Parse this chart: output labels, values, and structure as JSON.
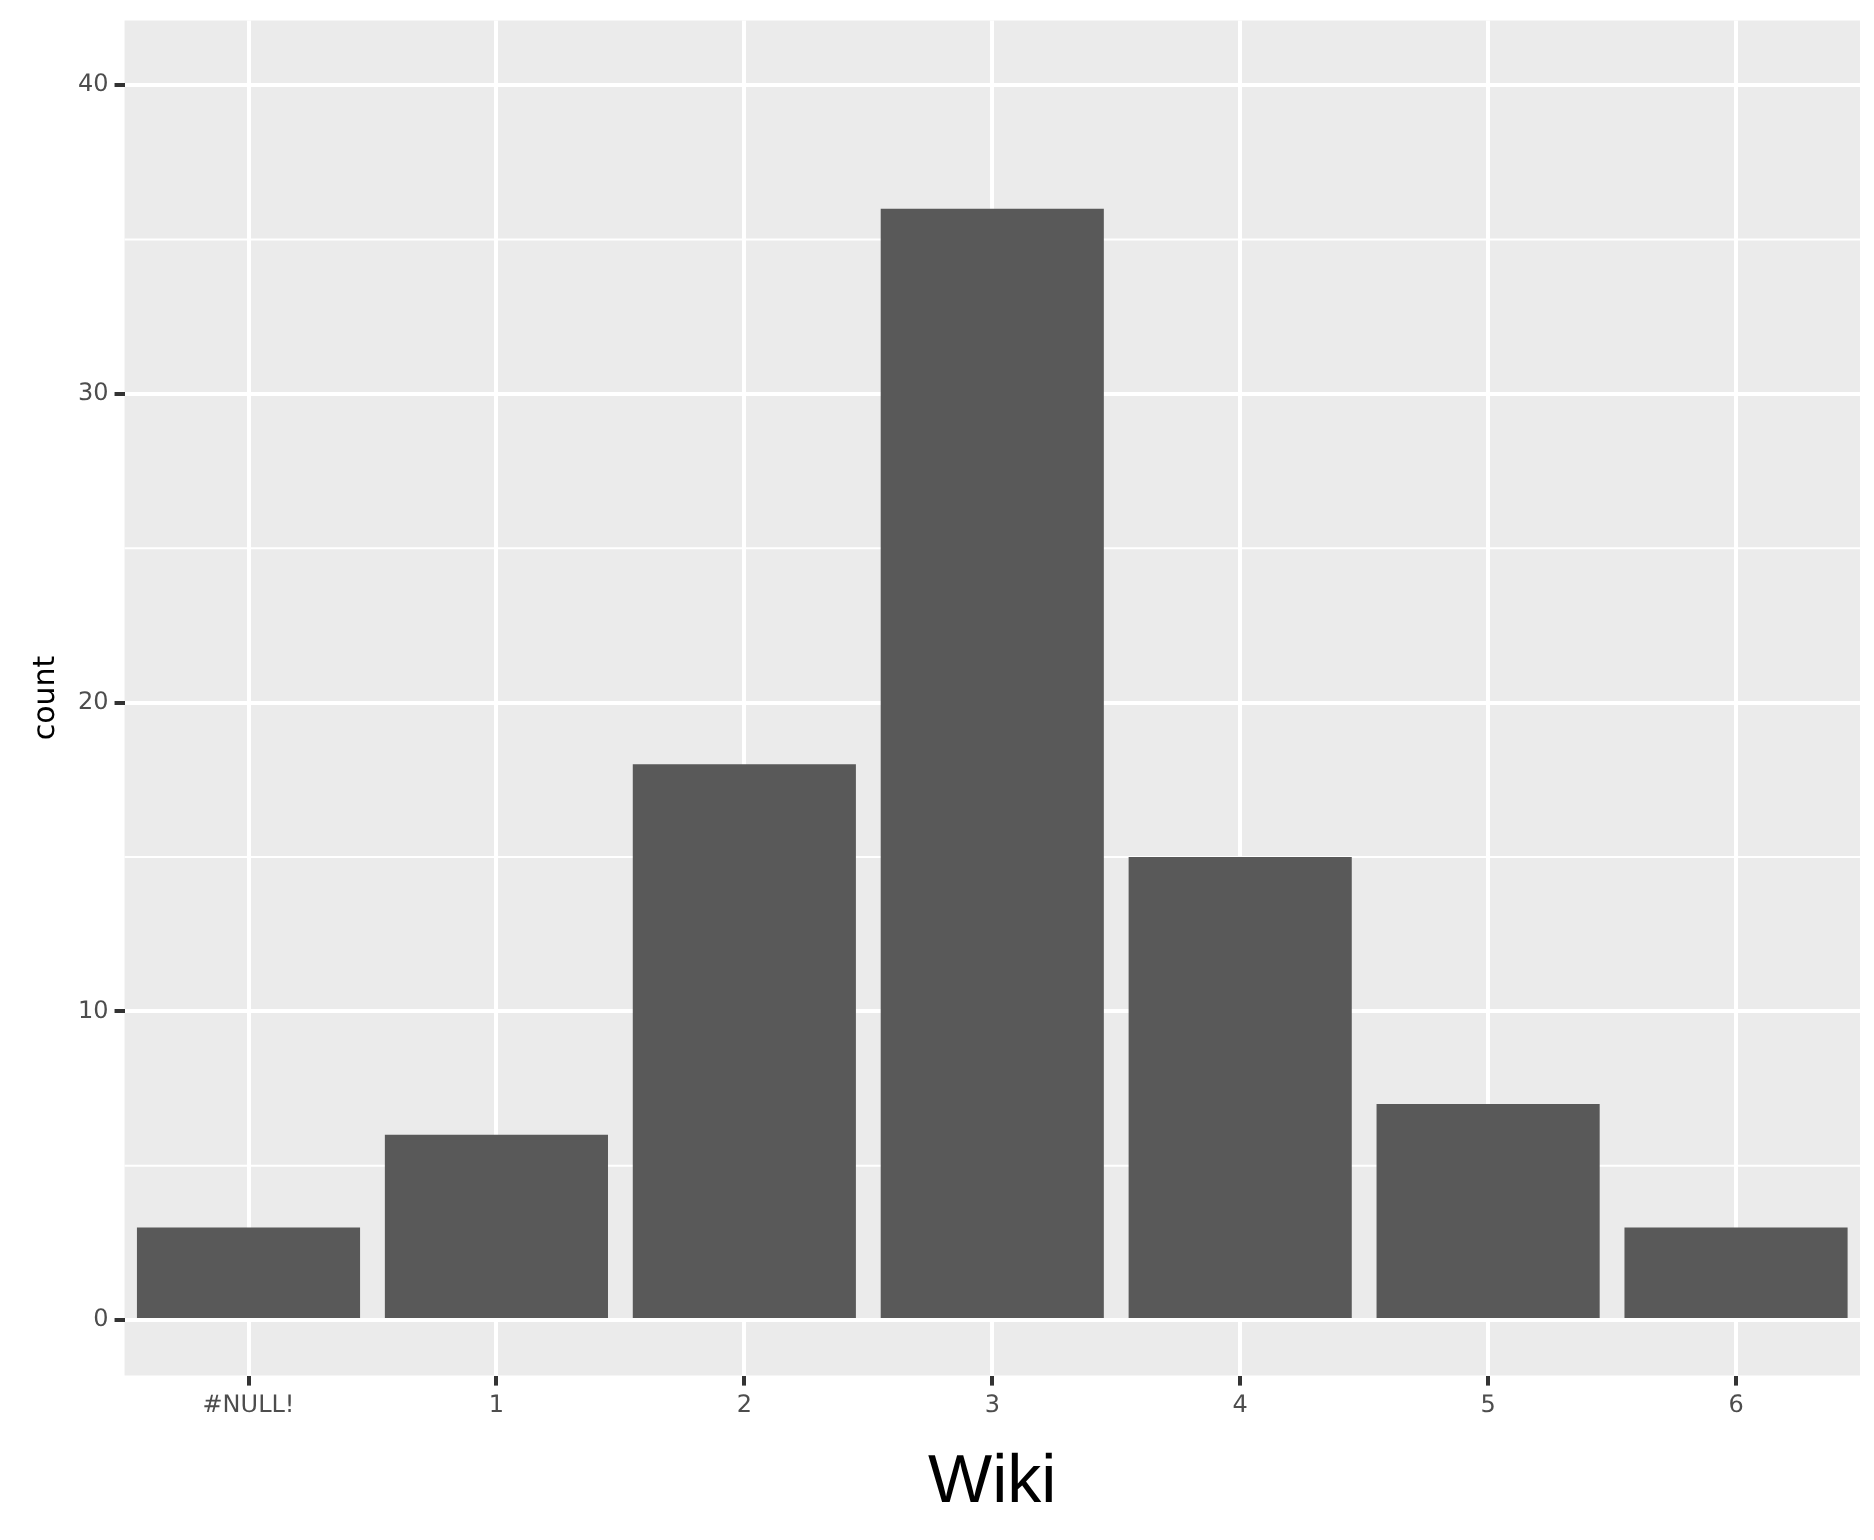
{
  "chart_data": {
    "type": "bar",
    "xlabel": "Wiki",
    "ylabel": "count",
    "categories": [
      "#NULL!",
      "1",
      "2",
      "3",
      "4",
      "5",
      "6"
    ],
    "values": [
      3,
      6,
      18,
      36,
      15,
      7,
      3
    ],
    "color": "#595959",
    "ylim": [
      -1.8,
      42.1
    ],
    "yticks": [
      0,
      10,
      20,
      30,
      40
    ],
    "grid": true
  }
}
